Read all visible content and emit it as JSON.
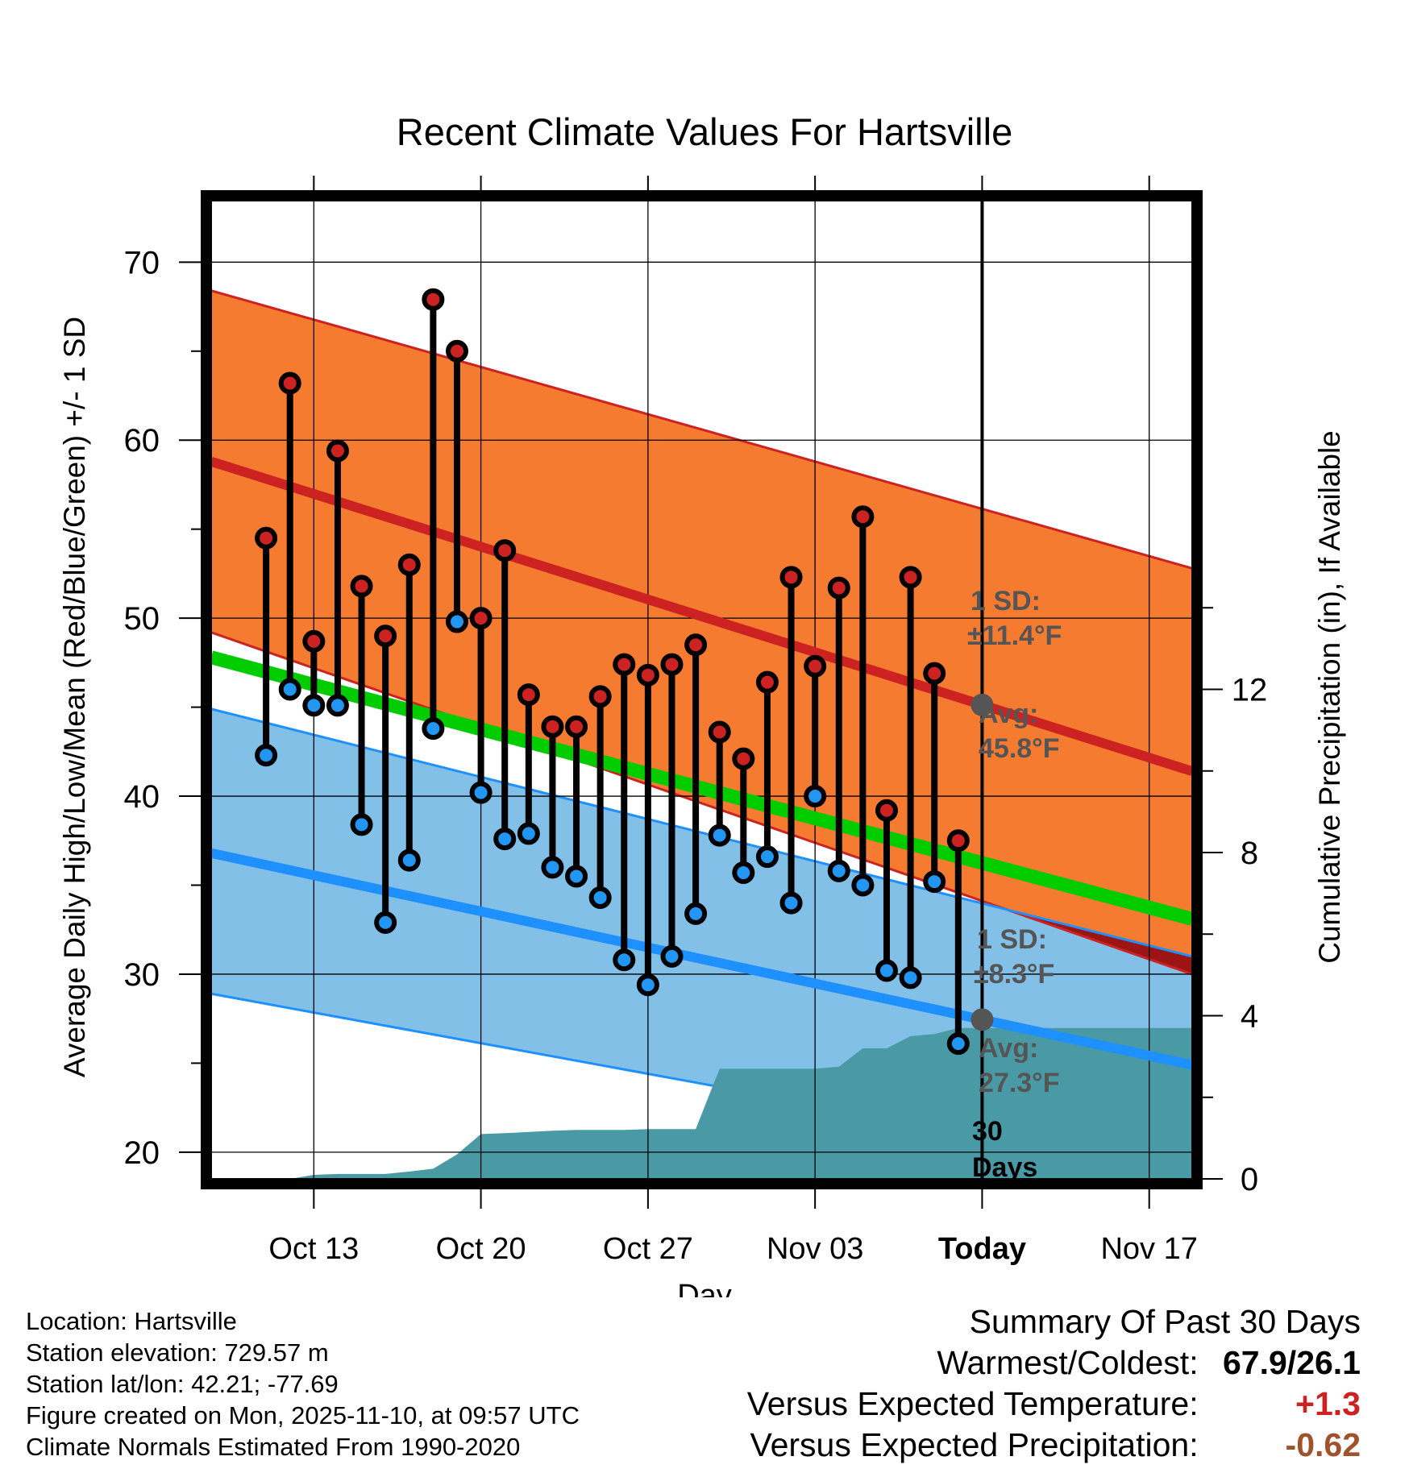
{
  "chart_data": {
    "type": "line",
    "title": "Recent Climate Values For Hartsville",
    "xlabel": "Day",
    "ylabel": "Average Daily High/Low/Mean (Red/Blue/Green) +/- 1 SD",
    "y2label": "Cumulative Precipitation (in), If Available",
    "ylim": [
      18.5,
      73.5
    ],
    "y_ticks": [
      20,
      30,
      40,
      50,
      60,
      70
    ],
    "y2lim": [
      0,
      24
    ],
    "y2_ticks": [
      0,
      4,
      8,
      12
    ],
    "xlim": [
      -4.3,
      36.8
    ],
    "x_ticks": [
      {
        "day": 0,
        "label": "Oct 13"
      },
      {
        "day": 7,
        "label": "Oct 20"
      },
      {
        "day": 14,
        "label": "Oct 27"
      },
      {
        "day": 21,
        "label": "Nov 03"
      },
      {
        "day": 28,
        "label": "Today"
      },
      {
        "day": 35,
        "label": "Nov 17"
      }
    ],
    "normals": {
      "high_mean_start": 58.8,
      "high_mean_end": 41.4,
      "high_upper_start": 68.4,
      "high_upper_end": 52.8,
      "high_lower_start": 49.2,
      "high_lower_end": 30.0,
      "low_mean_start": 36.8,
      "low_mean_end": 24.9,
      "low_upper_start": 44.9,
      "low_upper_end": 31.0,
      "low_lower_start": 28.9,
      "low_lower_end": 18.8,
      "mean_start": 47.8,
      "mean_end": 33.1
    },
    "days": [
      -2,
      -1,
      0,
      1,
      2,
      3,
      4,
      5,
      6,
      7,
      8,
      9,
      10,
      11,
      12,
      13,
      14,
      15,
      16,
      17,
      18,
      19,
      20,
      21,
      22,
      23,
      24,
      25,
      26,
      27
    ],
    "series": [
      {
        "name": "High",
        "color": "#cc2222",
        "values": [
          54.5,
          63.2,
          48.7,
          59.4,
          51.8,
          49.0,
          53.0,
          67.9,
          65.0,
          50.0,
          53.8,
          45.7,
          43.9,
          43.9,
          45.6,
          47.4,
          46.8,
          47.4,
          48.5,
          43.6,
          42.1,
          46.4,
          52.3,
          47.3,
          51.7,
          55.7,
          39.2,
          52.3,
          46.9,
          37.5
        ]
      },
      {
        "name": "Low",
        "color": "#2196f3",
        "values": [
          42.3,
          46.0,
          45.1,
          45.1,
          38.4,
          32.9,
          36.4,
          43.8,
          49.8,
          40.2,
          37.6,
          37.9,
          36.0,
          35.5,
          34.3,
          30.8,
          29.4,
          31.0,
          33.4,
          37.8,
          35.7,
          36.6,
          34.0,
          40.0,
          35.8,
          35.0,
          30.2,
          29.8,
          35.2,
          26.1
        ]
      },
      {
        "name": "Cumulative Precipitation",
        "x": [
          -1,
          0,
          1,
          2,
          3,
          4,
          5,
          6,
          7,
          8,
          9,
          10,
          11,
          12,
          13,
          14,
          15,
          16,
          17,
          18,
          19,
          20,
          21,
          22,
          23,
          24,
          25,
          26,
          27,
          28,
          29,
          36.8
        ],
        "values": [
          0.0,
          0.1,
          0.12,
          0.12,
          0.12,
          0.18,
          0.25,
          0.6,
          1.1,
          1.12,
          1.15,
          1.18,
          1.2,
          1.2,
          1.2,
          1.22,
          1.22,
          1.22,
          2.7,
          2.7,
          2.7,
          2.7,
          2.7,
          2.75,
          3.2,
          3.2,
          3.5,
          3.55,
          3.7,
          3.7,
          3.7,
          3.7
        ]
      }
    ],
    "annotations": {
      "high_sd": "1 SD:",
      "high_sd_value": "±11.4°F",
      "high_avg": "Avg:",
      "high_avg_value": "45.8°F",
      "low_sd": "1 SD:",
      "low_sd_value": "±8.3°F",
      "low_avg": "Avg:",
      "low_avg_value": "27.3°F",
      "window_count": "30",
      "window_unit": "Days"
    },
    "colors": {
      "high_band": "#f47b2f",
      "high_line": "#cc2222",
      "low_band": "#82c0e8",
      "low_line": "#1e90ff",
      "mean_line": "#00cc00",
      "overlap_band": "#9b1515",
      "precip_fill": "#4a9aa5",
      "avg_marker": "#555555",
      "annotation_text": "#555555"
    }
  },
  "info": {
    "location": "Location: Hartsville",
    "elevation": "Station elevation: 729.57 m",
    "latlon": "Station lat/lon: 42.21; -77.69",
    "created": "Figure created on Mon, 2025-11-10, at 09:57 UTC",
    "normals_period": "Climate Normals Estimated From 1990-2020"
  },
  "summary": {
    "title": "Summary Of Past 30 Days",
    "warm_label": "Warmest/Coldest:",
    "warm_value": "67.9/26.1",
    "temp_label": "Versus Expected Temperature:",
    "temp_value": "+1.3",
    "precip_label": "Versus Expected Precipitation:",
    "precip_value": "-0.62"
  }
}
